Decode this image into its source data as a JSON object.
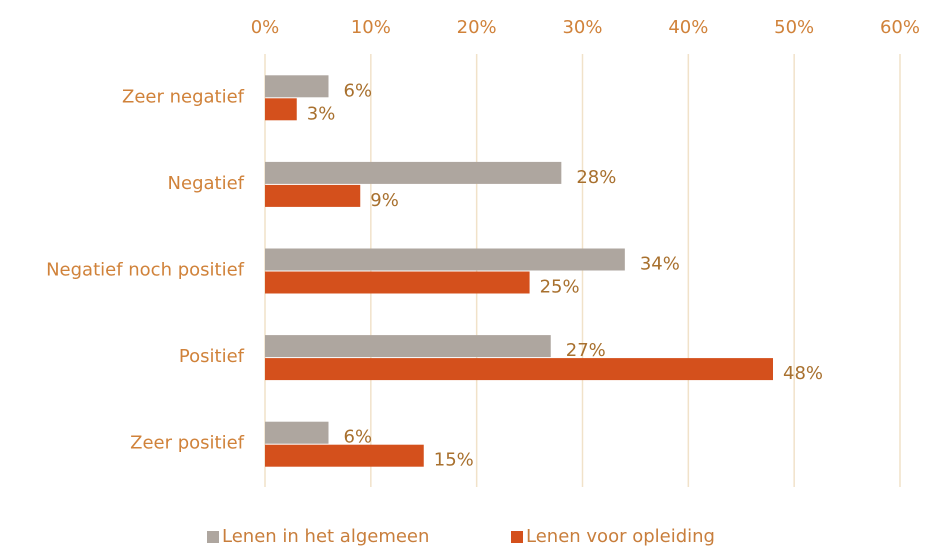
{
  "chart_data": {
    "type": "bar",
    "orientation": "horizontal",
    "categories": [
      "Zeer negatief",
      "Negatief",
      "Negatief noch positief",
      "Positief",
      "Zeer positief"
    ],
    "series": [
      {
        "name": "Lenen in het algemeen",
        "color": "#aea69f",
        "values": [
          6,
          28,
          34,
          27,
          6
        ],
        "value_labels": [
          "6%",
          "28%",
          "34%",
          "27%",
          "6%"
        ]
      },
      {
        "name": "Lenen voor opleiding",
        "color": "#d4501c",
        "values": [
          3,
          9,
          25,
          48,
          15
        ],
        "value_labels": [
          "3%",
          "9%",
          "25%",
          "48%",
          "15%"
        ]
      }
    ],
    "xlim": [
      0,
      60
    ],
    "xticks": [
      {
        "value": 0,
        "label": "0%"
      },
      {
        "value": 10,
        "label": "10%"
      },
      {
        "value": 20,
        "label": "20%"
      },
      {
        "value": 30,
        "label": "30%"
      },
      {
        "value": 40,
        "label": "40%"
      },
      {
        "value": 50,
        "label": "50%"
      },
      {
        "value": 60,
        "label": "60%"
      }
    ],
    "grid": true,
    "legend": "bottom"
  }
}
